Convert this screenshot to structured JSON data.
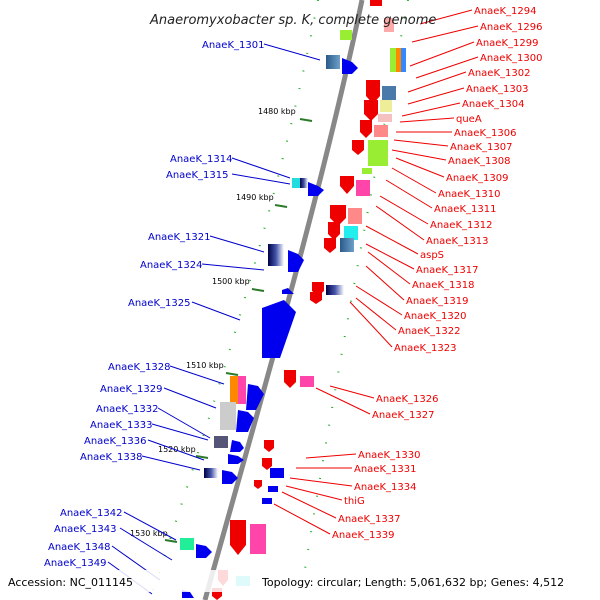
{
  "title": "Anaeromyxobacter sp. K, complete genome",
  "accession": "Accession: NC_011145",
  "topology": "Topology: circular; Length: 5,061,632 bp; Genes: 4,512",
  "colors": {
    "left_label": "#0000cc",
    "right_label": "#ee0000",
    "backbone": "#888888"
  },
  "kbp_ticks": [
    "1480 kbp",
    "1490 kbp",
    "1500 kbp",
    "1510 kbp",
    "1520 kbp",
    "1530 kbp"
  ],
  "left_labels": [
    "AnaeK_1301",
    "AnaeK_1314",
    "AnaeK_1315",
    "AnaeK_1321",
    "AnaeK_1324",
    "AnaeK_1325",
    "AnaeK_1328",
    "AnaeK_1329",
    "AnaeK_1332",
    "AnaeK_1333",
    "AnaeK_1336",
    "AnaeK_1338",
    "AnaeK_1342",
    "AnaeK_1343",
    "AnaeK_1348",
    "AnaeK_1349"
  ],
  "right_labels": [
    "AnaeK_1294",
    "AnaeK_1296",
    "AnaeK_1299",
    "AnaeK_1300",
    "AnaeK_1302",
    "AnaeK_1303",
    "AnaeK_1304",
    "queA",
    "AnaeK_1306",
    "AnaeK_1307",
    "AnaeK_1308",
    "AnaeK_1309",
    "AnaeK_1310",
    "AnaeK_1311",
    "AnaeK_1312",
    "AnaeK_1313",
    "aspS",
    "AnaeK_1317",
    "AnaeK_1318",
    "AnaeK_1319",
    "AnaeK_1320",
    "AnaeK_1322",
    "AnaeK_1323",
    "AnaeK_1326",
    "AnaeK_1327",
    "AnaeK_1330",
    "AnaeK_1331",
    "AnaeK_1334",
    "thiG",
    "AnaeK_1337",
    "AnaeK_1339"
  ]
}
